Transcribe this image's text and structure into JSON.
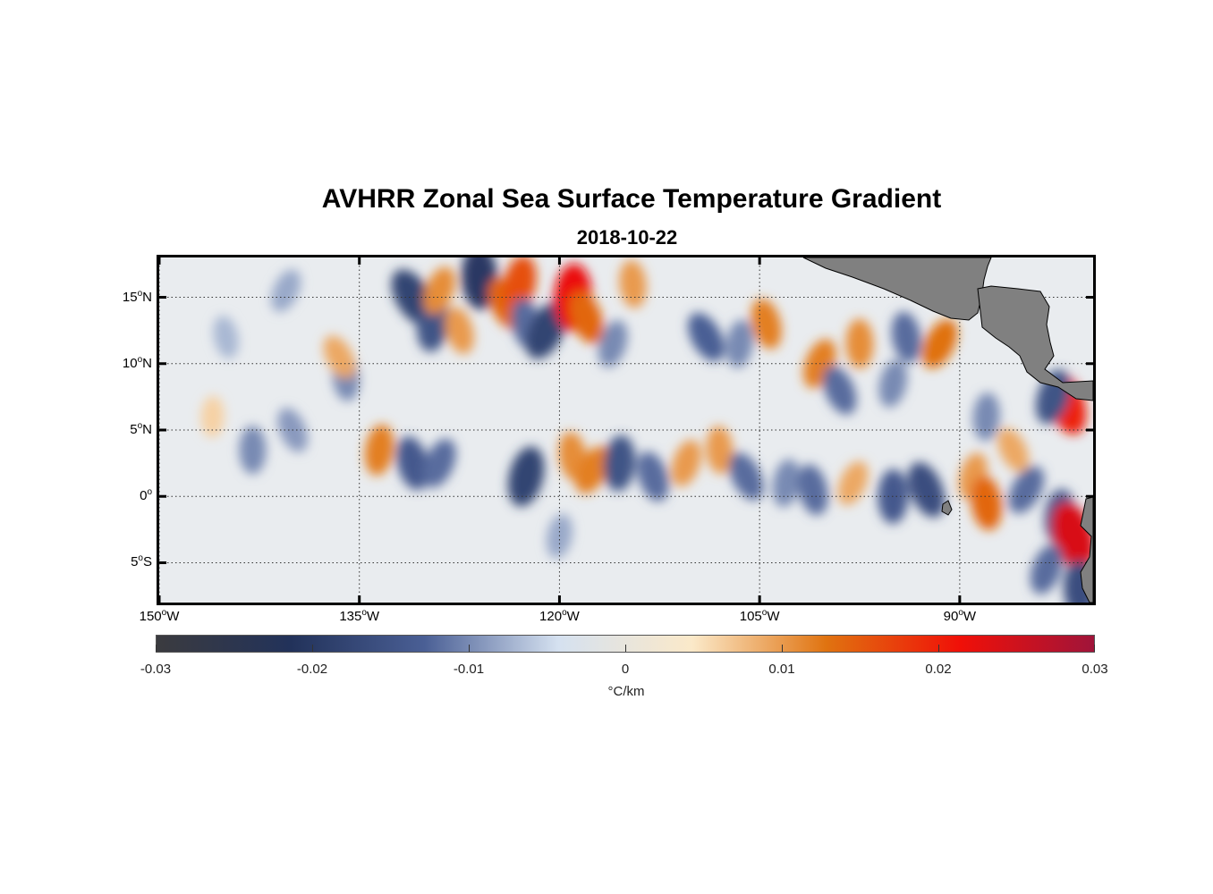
{
  "title": "AVHRR Zonal Sea Surface Temperature Gradient",
  "subtitle": "2018-10-22",
  "map": {
    "lon_range": [
      -150,
      -80
    ],
    "lat_range": [
      -8,
      18
    ],
    "y_ticks": [
      {
        "lat": 15,
        "num": "15",
        "hemi": "N"
      },
      {
        "lat": 10,
        "num": "10",
        "hemi": "N"
      },
      {
        "lat": 5,
        "num": "5",
        "hemi": "N"
      },
      {
        "lat": 0,
        "num": "0",
        "hemi": ""
      },
      {
        "lat": -5,
        "num": "5",
        "hemi": "S"
      }
    ],
    "x_ticks": [
      {
        "lon": -150,
        "num": "150",
        "hemi": "W"
      },
      {
        "lon": -135,
        "num": "135",
        "hemi": "W"
      },
      {
        "lon": -120,
        "num": "120",
        "hemi": "W"
      },
      {
        "lon": -105,
        "num": "105",
        "hemi": "W"
      },
      {
        "lon": -90,
        "num": "90",
        "hemi": "W"
      }
    ],
    "land_color": "#808080",
    "ocean_base_color": "#e9ecef"
  },
  "colorbar": {
    "range": [
      -0.03,
      0.03
    ],
    "ticks": [
      {
        "value": -0.03,
        "label": "-0.03"
      },
      {
        "value": -0.02,
        "label": "-0.02"
      },
      {
        "value": -0.01,
        "label": "-0.01"
      },
      {
        "value": 0,
        "label": "0"
      },
      {
        "value": 0.01,
        "label": "0.01"
      },
      {
        "value": 0.02,
        "label": "0.02"
      },
      {
        "value": 0.03,
        "label": "0.03"
      }
    ],
    "unit": "°C/km",
    "colors": [
      "#3b3b3f",
      "#22325a",
      "#4a5f95",
      "#d5e1f0",
      "#fbe9c9",
      "#e07310",
      "#f01008",
      "#a0143a"
    ]
  },
  "features": [
    {
      "lon": -131.0,
      "lat": 15.0,
      "value": -0.018
    },
    {
      "lon": -129.5,
      "lat": 13.0,
      "value": -0.015
    },
    {
      "lon": -127.5,
      "lat": 12.5,
      "value": 0.01
    },
    {
      "lon": -129.0,
      "lat": 15.5,
      "value": 0.011
    },
    {
      "lon": -126.0,
      "lat": 16.5,
      "value": -0.02
    },
    {
      "lon": -124.0,
      "lat": 14.5,
      "value": 0.014
    },
    {
      "lon": -123.0,
      "lat": 16.0,
      "value": 0.016
    },
    {
      "lon": -122.5,
      "lat": 13.0,
      "value": -0.012
    },
    {
      "lon": -121.0,
      "lat": 12.5,
      "value": -0.018
    },
    {
      "lon": -119.0,
      "lat": 15.0,
      "value": 0.022
    },
    {
      "lon": -118.0,
      "lat": 13.5,
      "value": 0.014
    },
    {
      "lon": -116.0,
      "lat": 11.5,
      "value": -0.01
    },
    {
      "lon": -114.5,
      "lat": 16.0,
      "value": 0.01
    },
    {
      "lon": -109.0,
      "lat": 12.0,
      "value": -0.013
    },
    {
      "lon": -106.5,
      "lat": 11.5,
      "value": -0.01
    },
    {
      "lon": -104.5,
      "lat": 13.0,
      "value": 0.012
    },
    {
      "lon": -100.5,
      "lat": 10.0,
      "value": 0.012
    },
    {
      "lon": -97.5,
      "lat": 11.5,
      "value": 0.011
    },
    {
      "lon": -99.0,
      "lat": 8.0,
      "value": -0.012
    },
    {
      "lon": -95.0,
      "lat": 8.5,
      "value": -0.01
    },
    {
      "lon": -94.0,
      "lat": 12.0,
      "value": -0.012
    },
    {
      "lon": -91.5,
      "lat": 11.5,
      "value": 0.013
    },
    {
      "lon": -88.0,
      "lat": 6.0,
      "value": -0.01
    },
    {
      "lon": -82.0,
      "lat": 7.0,
      "value": 0.02
    },
    {
      "lon": -83.0,
      "lat": 7.5,
      "value": -0.015
    },
    {
      "lon": -136.0,
      "lat": 9.0,
      "value": -0.01
    },
    {
      "lon": -136.5,
      "lat": 10.5,
      "value": 0.009
    },
    {
      "lon": -133.5,
      "lat": 3.5,
      "value": 0.012
    },
    {
      "lon": -131.0,
      "lat": 2.5,
      "value": -0.014
    },
    {
      "lon": -129.0,
      "lat": 2.5,
      "value": -0.012
    },
    {
      "lon": -143.0,
      "lat": 3.5,
      "value": -0.01
    },
    {
      "lon": -140.0,
      "lat": 5.0,
      "value": -0.009
    },
    {
      "lon": -122.5,
      "lat": 1.5,
      "value": -0.018
    },
    {
      "lon": -119.0,
      "lat": 3.0,
      "value": 0.011
    },
    {
      "lon": -117.5,
      "lat": 2.0,
      "value": 0.012
    },
    {
      "lon": -115.5,
      "lat": 2.5,
      "value": -0.015
    },
    {
      "lon": -113.0,
      "lat": 1.5,
      "value": -0.012
    },
    {
      "lon": -110.5,
      "lat": 2.5,
      "value": 0.01
    },
    {
      "lon": -108.0,
      "lat": 3.5,
      "value": 0.01
    },
    {
      "lon": -106.0,
      "lat": 1.5,
      "value": -0.012
    },
    {
      "lon": -103.0,
      "lat": 1.0,
      "value": -0.01
    },
    {
      "lon": -101.0,
      "lat": 0.5,
      "value": -0.012
    },
    {
      "lon": -98.0,
      "lat": 1.0,
      "value": 0.009
    },
    {
      "lon": -95.0,
      "lat": 0.0,
      "value": -0.014
    },
    {
      "lon": -92.5,
      "lat": 0.5,
      "value": -0.016
    },
    {
      "lon": -89.0,
      "lat": 1.5,
      "value": 0.01
    },
    {
      "lon": -88.0,
      "lat": -0.5,
      "value": 0.014
    },
    {
      "lon": -85.0,
      "lat": 0.5,
      "value": -0.012
    },
    {
      "lon": -82.5,
      "lat": -1.5,
      "value": -0.014
    },
    {
      "lon": -81.5,
      "lat": -3.0,
      "value": 0.024
    },
    {
      "lon": -83.5,
      "lat": -5.5,
      "value": -0.012
    },
    {
      "lon": -81.0,
      "lat": -7.0,
      "value": -0.016
    },
    {
      "lon": -86.0,
      "lat": 3.5,
      "value": 0.009
    },
    {
      "lon": -120.0,
      "lat": -3.0,
      "value": -0.008
    },
    {
      "lon": -145.0,
      "lat": 12.0,
      "value": -0.007
    },
    {
      "lon": -140.5,
      "lat": 15.5,
      "value": -0.008
    },
    {
      "lon": -146.0,
      "lat": 6.0,
      "value": 0.006
    }
  ]
}
